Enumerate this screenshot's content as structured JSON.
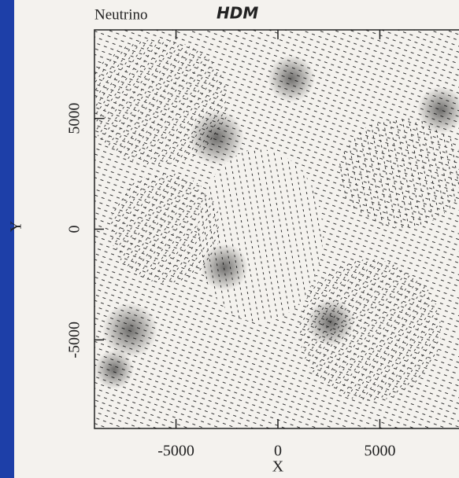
{
  "chart_data": {
    "type": "scatter",
    "title": "Neutrino",
    "annotation": "HDM",
    "xlabel": "X",
    "ylabel": "Y",
    "xlim": [
      -9000,
      9000
    ],
    "ylim": [
      -9000,
      9000
    ],
    "xticks": [
      -5000,
      0,
      5000
    ],
    "yticks": [
      -5000,
      0,
      5000
    ]
  }
}
